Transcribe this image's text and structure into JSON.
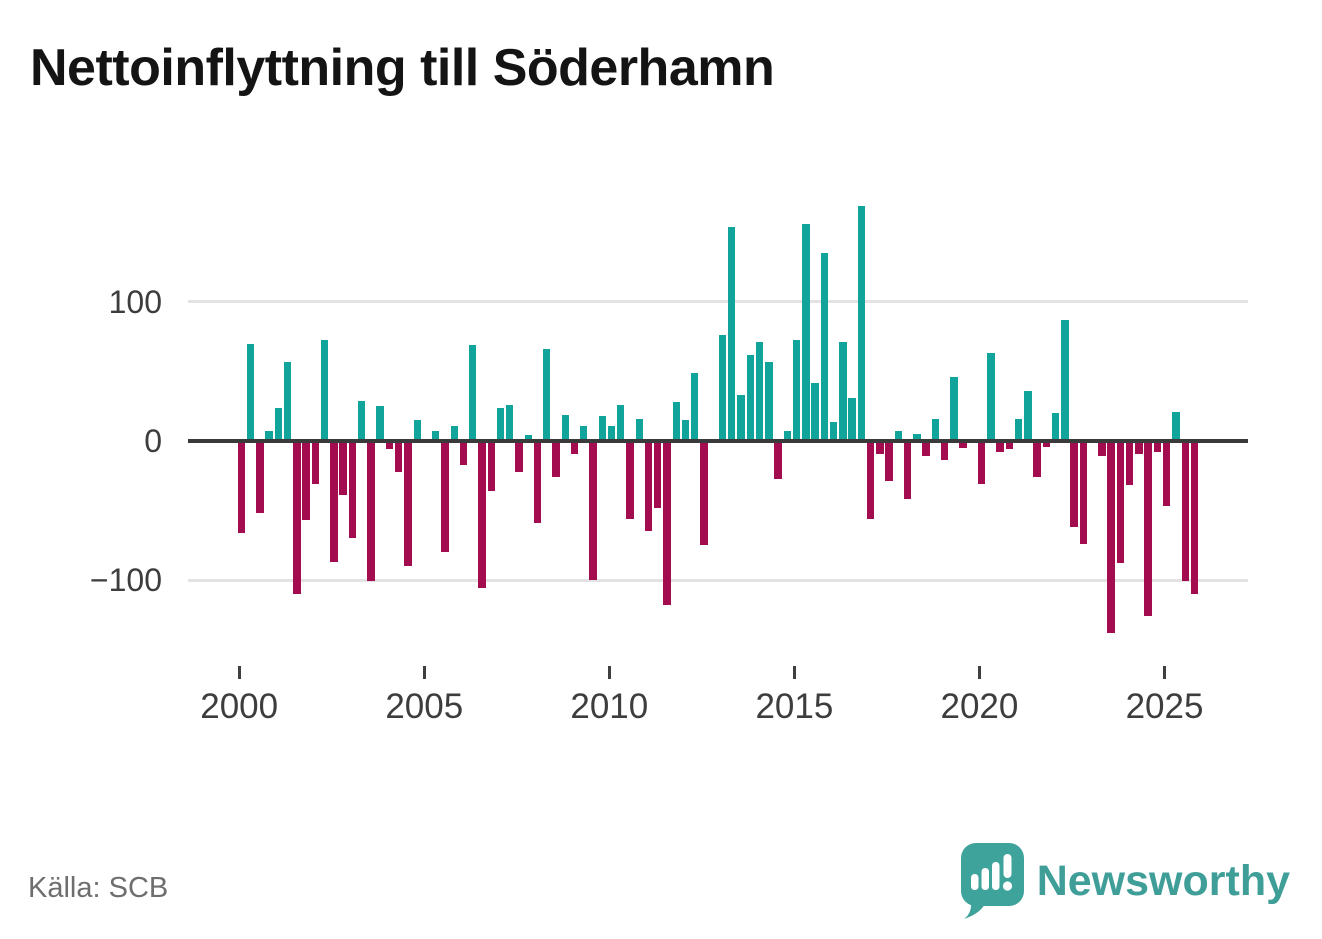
{
  "title": "Nettoinflyttning till Söderhamn",
  "source": "Källa: SCB",
  "branding": {
    "name": "Newsworthy",
    "logo_icon": "bar-chart-speech-bubble-icon"
  },
  "colors": {
    "positive": "#10a49b",
    "negative": "#a30c4f",
    "zero_line": "#3a3a3a",
    "gridline": "#e3e3e3",
    "axis_text": "#3d3d3d",
    "title_text": "#141414",
    "source_text": "#6e6e6e",
    "brand_teal": "#3f9e98"
  },
  "chart_data": {
    "type": "bar",
    "title": "Nettoinflyttning till Söderhamn",
    "frequency": "quarterly",
    "start_year": 2000,
    "x_tick_labels": [
      "2000",
      "2005",
      "2010",
      "2015",
      "2020",
      "2025"
    ],
    "x_tick_quarter_indices": [
      0,
      20,
      40,
      60,
      80,
      100
    ],
    "y_tick_labels": [
      "100",
      "0",
      "−100"
    ],
    "y_tick_values": [
      100,
      0,
      -100
    ],
    "ylim": [
      -145,
      175
    ],
    "grid": "horizontal-only",
    "legend": "none",
    "values": [
      -66,
      70,
      -52,
      7,
      24,
      57,
      -110,
      -57,
      -31,
      73,
      -87,
      -39,
      -70,
      29,
      -101,
      25,
      -6,
      -22,
      -90,
      15,
      0,
      7,
      -80,
      11,
      -17,
      69,
      -106,
      -36,
      24,
      26,
      -22,
      4,
      -59,
      66,
      -26,
      19,
      -9,
      11,
      -100,
      18,
      11,
      26,
      -56,
      16,
      -65,
      -48,
      -118,
      28,
      15,
      49,
      -75,
      0,
      76,
      154,
      33,
      62,
      71,
      57,
      -27,
      7,
      73,
      156,
      42,
      135,
      14,
      71,
      31,
      169,
      -56,
      -9,
      -29,
      7,
      -42,
      5,
      -11,
      16,
      -14,
      46,
      -5,
      0,
      -31,
      63,
      -8,
      -6,
      16,
      36,
      -26,
      -4,
      20,
      87,
      -62,
      -74,
      0,
      -11,
      -138,
      -88,
      -32,
      -9,
      -126,
      -8,
      -47,
      21,
      -101,
      -110
    ]
  }
}
